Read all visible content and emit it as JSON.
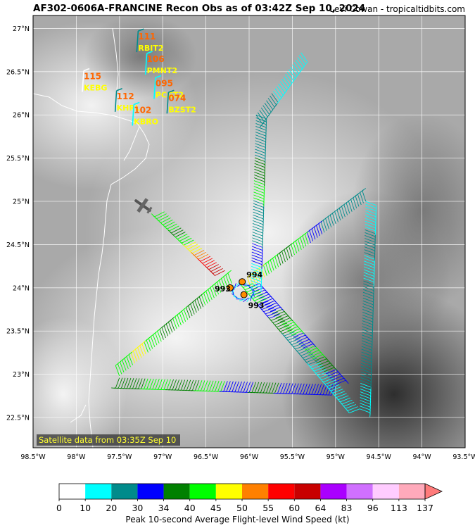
{
  "header": {
    "title": "AF302-0606A-FRANCINE Recon Obs as of 03:42Z Sep 10, 2024",
    "credit": "Levi Cowan - tropicaltidbits.com"
  },
  "map": {
    "lon_range": [
      -98.5,
      -93.5
    ],
    "lat_range": [
      22.15,
      27.15
    ],
    "lon_ticks": [
      "98.5°W",
      "98°W",
      "97.5°W",
      "97°W",
      "96.5°W",
      "96°W",
      "95.5°W",
      "95°W",
      "94.5°W",
      "94°W",
      "93.5°W"
    ],
    "lat_ticks": [
      "22.5°N",
      "23°N",
      "23.5°N",
      "24°N",
      "24.5°N",
      "25°N",
      "25.5°N",
      "26°N",
      "26.5°N",
      "27°N"
    ],
    "satellite_note": "Satellite data from 03:35Z Sep 10",
    "pressure_obs": [
      {
        "label": "994",
        "lon": -96.08,
        "lat": 24.07
      },
      {
        "label": "993",
        "lon": -96.22,
        "lat": 24.0
      },
      {
        "label": "993",
        "lon": -96.06,
        "lat": 23.92
      }
    ],
    "stations": [
      {
        "name": "KEBG",
        "speed": "115",
        "lon": -97.93,
        "lat": 26.38
      },
      {
        "name": "RBIT2",
        "speed": "111",
        "lon": -97.3,
        "lat": 26.84
      },
      {
        "name": "PMNT2",
        "speed": "106",
        "lon": -97.2,
        "lat": 26.58
      },
      {
        "name": "KHRL",
        "speed": "112",
        "lon": -97.55,
        "lat": 26.15
      },
      {
        "name": "PCGT2",
        "speed": "095",
        "lon": -97.1,
        "lat": 26.3
      },
      {
        "name": "BZST2",
        "speed": "074",
        "lon": -96.95,
        "lat": 26.13
      },
      {
        "name": "KBRO",
        "speed": "102",
        "lon": -97.35,
        "lat": 25.99
      }
    ]
  },
  "colorbar": {
    "label": "Peak 10-second Average Flight-level Wind Speed (kt)",
    "ticks": [
      "0",
      "10",
      "20",
      "30",
      "34",
      "40",
      "45",
      "50",
      "55",
      "60",
      "64",
      "83",
      "96",
      "113",
      "137"
    ],
    "colors": [
      "#ffffff",
      "#00ffff",
      "#008b8b",
      "#0000ff",
      "#008000",
      "#00ff00",
      "#ffff00",
      "#ff8000",
      "#ff0000",
      "#c80000",
      "#aa00ff",
      "#d070ff",
      "#ffccff",
      "#ffaabb"
    ],
    "extend_color": "#ff7b7b"
  }
}
